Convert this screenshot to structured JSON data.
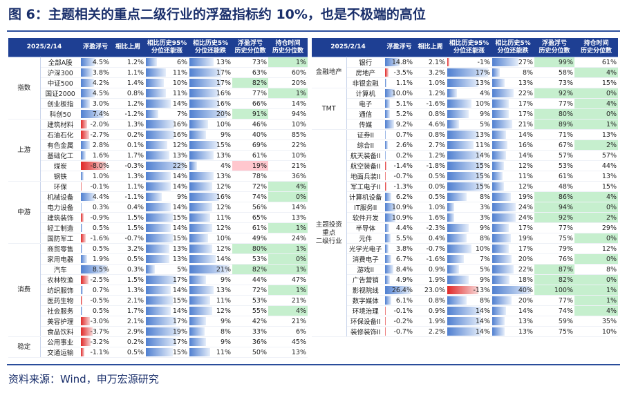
{
  "title": "图 6：主题相关的重点二级行业的浮盈指标约 10%，也是不极端的高位",
  "left": {
    "header": [
      "2025/2/14",
      "浮盈浮亏",
      "相比上周",
      "相比历史95%\n分位还能涨",
      "相比历史5%\n分位还能跌",
      "浮盈浮亏\n历史分位数",
      "持仓时间\n历史分位数"
    ],
    "groups": [
      {
        "name": "指数",
        "rows": [
          [
            "全部A股",
            "4.5%",
            "1.2%",
            "6%",
            "13%",
            "73%",
            "1%"
          ],
          [
            "沪深300",
            "3.8%",
            "1.1%",
            "11%",
            "17%",
            "63%",
            "60%"
          ],
          [
            "中证500",
            "4.2%",
            "1.4%",
            "10%",
            "17%",
            "82%",
            "20%"
          ],
          [
            "国证2000",
            "4.5%",
            "0.8%",
            "11%",
            "16%",
            "77%",
            "1%"
          ],
          [
            "创业板指",
            "3.0%",
            "1.2%",
            "14%",
            "16%",
            "66%",
            "14%"
          ],
          [
            "科创50",
            "7.4%",
            "-1.2%",
            "7%",
            "20%",
            "91%",
            "94%"
          ]
        ]
      },
      {
        "name": "上游",
        "rows": [
          [
            "建筑材料",
            "-2.0%",
            "1.3%",
            "16%",
            "10%",
            "46%",
            "10%"
          ],
          [
            "石油石化",
            "-2.7%",
            "0.2%",
            "16%",
            "9%",
            "40%",
            "85%"
          ],
          [
            "有色金属",
            "2.8%",
            "0.1%",
            "12%",
            "15%",
            "69%",
            "22%"
          ],
          [
            "基础化工",
            "1.6%",
            "1.7%",
            "13%",
            "13%",
            "61%",
            "10%"
          ],
          [
            "煤炭",
            "-8.0%",
            "-0.3%",
            "22%",
            "4%",
            "19%",
            "21%"
          ],
          [
            "钢铁",
            "1.0%",
            "1.3%",
            "14%",
            "13%",
            "78%",
            "36%"
          ]
        ]
      },
      {
        "name": "中游",
        "rows": [
          [
            "环保",
            "-0.1%",
            "1.1%",
            "14%",
            "12%",
            "72%",
            "4%"
          ],
          [
            "机械设备",
            "4.4%",
            "-1.1%",
            "9%",
            "16%",
            "74%",
            "0%"
          ],
          [
            "电力设备",
            "0.3%",
            "0.4%",
            "14%",
            "12%",
            "56%",
            "14%"
          ],
          [
            "建筑装饰",
            "-0.9%",
            "1.5%",
            "15%",
            "11%",
            "65%",
            "13%"
          ],
          [
            "轻工制造",
            "0.5%",
            "1.5%",
            "14%",
            "12%",
            "61%",
            "1%"
          ],
          [
            "国防军工",
            "-1.6%",
            "-0.7%",
            "15%",
            "10%",
            "49%",
            "24%"
          ]
        ]
      },
      {
        "name": "消费",
        "rows": [
          [
            "商贸零售",
            "0.5%",
            "3.2%",
            "13%",
            "12%",
            "80%",
            "1%"
          ],
          [
            "家用电器",
            "1.9%",
            "0.5%",
            "13%",
            "14%",
            "53%",
            "0%"
          ],
          [
            "汽车",
            "8.5%",
            "0.3%",
            "5%",
            "21%",
            "82%",
            "1%"
          ],
          [
            "农林牧渔",
            "-2.5%",
            "1.5%",
            "17%",
            "9%",
            "44%",
            "47%"
          ],
          [
            "纺织服饰",
            "0.7%",
            "1.3%",
            "14%",
            "13%",
            "72%",
            "1%"
          ],
          [
            "医药生物",
            "-0.5%",
            "2.1%",
            "15%",
            "11%",
            "53%",
            "21%"
          ],
          [
            "社会服务",
            "0.5%",
            "1.7%",
            "14%",
            "12%",
            "55%",
            "4%"
          ],
          [
            "美容护理",
            "-3.0%",
            "2.1%",
            "17%",
            "9%",
            "42%",
            "21%"
          ],
          [
            "食品饮料",
            "-3.7%",
            "2.9%",
            "19%",
            "8%",
            "33%",
            "6%"
          ]
        ]
      },
      {
        "name": "稳定",
        "rows": [
          [
            "公用事业",
            "-3.2%",
            "0.2%",
            "17%",
            "9%",
            "36%",
            "45%"
          ],
          [
            "交通运输",
            "-1.1%",
            "0.5%",
            "15%",
            "11%",
            "50%",
            "13%"
          ]
        ]
      }
    ]
  },
  "right": {
    "header": [
      "2025/2/14",
      "浮盈浮亏",
      "相比上周",
      "相比历史95%\n分位还能涨",
      "相比历史5%\n分位还能跌",
      "浮盈浮亏\n历史分位数",
      "持仓时间\n历史分位数"
    ],
    "groups": [
      {
        "name": "金融地产",
        "rows": [
          [
            "银行",
            "14.8%",
            "2.1%",
            "-1%",
            "27%",
            "99%",
            "61%"
          ],
          [
            "房地产",
            "-3.5%",
            "3.2%",
            "17%",
            "8%",
            "58%",
            "4%"
          ],
          [
            "非银金融",
            "1.1%",
            "1.0%",
            "13%",
            "13%",
            "73%",
            "15%"
          ]
        ]
      },
      {
        "name": "TMT",
        "rows": [
          [
            "计算机",
            "10.0%",
            "1.2%",
            "4%",
            "22%",
            "92%",
            "0%"
          ],
          [
            "电子",
            "5.1%",
            "-1.6%",
            "10%",
            "17%",
            "77%",
            "4%"
          ],
          [
            "通信",
            "5.2%",
            "0.8%",
            "9%",
            "17%",
            "80%",
            "0%"
          ],
          [
            "传媒",
            "9.2%",
            "4.6%",
            "5%",
            "21%",
            "89%",
            "1%"
          ]
        ]
      },
      {
        "name": "主题投资\n重点\n二级行业",
        "rows": [
          [
            "证券II",
            "0.7%",
            "0.8%",
            "13%",
            "14%",
            "71%",
            "13%"
          ],
          [
            "综合II",
            "2.6%",
            "2.7%",
            "11%",
            "16%",
            "67%",
            "2%"
          ],
          [
            "航天装备II",
            "0.2%",
            "1.2%",
            "14%",
            "14%",
            "57%",
            "57%"
          ],
          [
            "航空装备II",
            "-1.4%",
            "-1.8%",
            "15%",
            "12%",
            "53%",
            "44%"
          ],
          [
            "地面兵装II",
            "-0.7%",
            "0.5%",
            "15%",
            "11%",
            "61%",
            "13%"
          ],
          [
            "军工电子II",
            "-1.3%",
            "0.0%",
            "15%",
            "12%",
            "48%",
            "15%"
          ],
          [
            "计算机设备",
            "6.2%",
            "0.5%",
            "8%",
            "19%",
            "86%",
            "4%"
          ],
          [
            "IT服务II",
            "10.9%",
            "1.0%",
            "3%",
            "24%",
            "94%",
            "0%"
          ],
          [
            "软件开发",
            "10.9%",
            "1.6%",
            "3%",
            "24%",
            "92%",
            "2%"
          ],
          [
            "半导体",
            "4.4%",
            "-2.3%",
            "9%",
            "17%",
            "77%",
            "29%"
          ],
          [
            "元件",
            "5.5%",
            "0.4%",
            "8%",
            "19%",
            "75%",
            "0%"
          ],
          [
            "光学光电子",
            "3.8%",
            "-0.7%",
            "10%",
            "17%",
            "79%",
            "12%"
          ],
          [
            "消费电子",
            "6.7%",
            "-1.6%",
            "7%",
            "20%",
            "76%",
            "0%"
          ],
          [
            "游戏II",
            "8.4%",
            "0.9%",
            "5%",
            "22%",
            "87%",
            "8%"
          ],
          [
            "广告营销",
            "4.9%",
            "1.9%",
            "9%",
            "18%",
            "82%",
            "0%"
          ],
          [
            "影视院线",
            "26.4%",
            "23.0%",
            "-13%",
            "40%",
            "100%",
            "1%"
          ],
          [
            "数字媒体",
            "6.1%",
            "0.8%",
            "8%",
            "20%",
            "77%",
            "1%"
          ],
          [
            "环境治理",
            "-0.1%",
            "0.9%",
            "14%",
            "14%",
            "74%",
            "4%"
          ],
          [
            "环保设备II",
            "-0.2%",
            "1.9%",
            "14%",
            "13%",
            "59%",
            "35%"
          ],
          [
            "装修装饰II",
            "-0.7%",
            "2.2%",
            "14%",
            "13%",
            "75%",
            "10%"
          ]
        ]
      }
    ]
  },
  "source": "资料来源：Wind，申万宏源研究"
}
